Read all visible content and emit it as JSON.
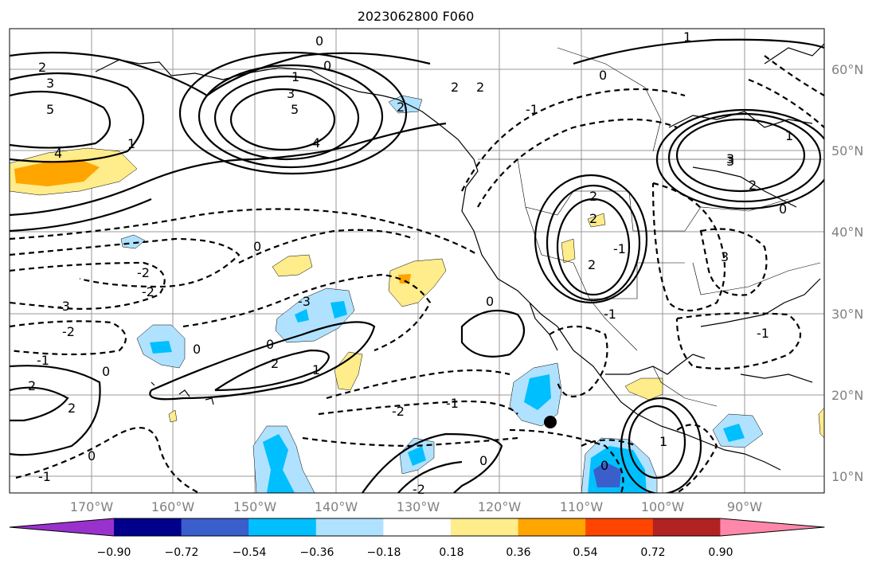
{
  "map": {
    "title": "2023062800 F060",
    "longitude_labels": [
      "170°W",
      "160°W",
      "150°W",
      "140°W",
      "130°W",
      "120°W",
      "110°W",
      "100°W",
      "90°W"
    ],
    "latitude_labels": [
      "60°N",
      "50°N",
      "40°N",
      "30°N",
      "20°N",
      "10°N"
    ],
    "contour_labels": [
      "0",
      "1",
      "2",
      "3",
      "5",
      "4",
      "5",
      "3",
      "2",
      "1",
      "0",
      "-1",
      "2",
      "2",
      "0",
      "1",
      "4",
      "3",
      "3",
      "2",
      "0",
      "-1",
      "-2",
      "0",
      "-3",
      "-2",
      "-1",
      "2",
      "0",
      "2",
      "-3",
      "3",
      "1",
      "2",
      "0",
      "2",
      "-2",
      "-1",
      "-1",
      "1",
      "0",
      "-2",
      "2",
      "-1",
      "-2",
      "0",
      "1",
      "0",
      "0",
      "2",
      "0",
      "-1"
    ],
    "marker": "black dot"
  },
  "colorbar": {
    "tick_labels": [
      "−0.90",
      "−0.72",
      "−0.54",
      "−0.36",
      "−0.18",
      "0.18",
      "0.36",
      "0.54",
      "0.72",
      "0.90"
    ],
    "colors": [
      "#9932cc",
      "#00008b",
      "#3a5fcd",
      "#00bfff",
      "#b0e2ff",
      "#ffffff",
      "#ffec8b",
      "#ffa500",
      "#ff4500",
      "#b22222",
      "#ff88aa"
    ]
  }
}
